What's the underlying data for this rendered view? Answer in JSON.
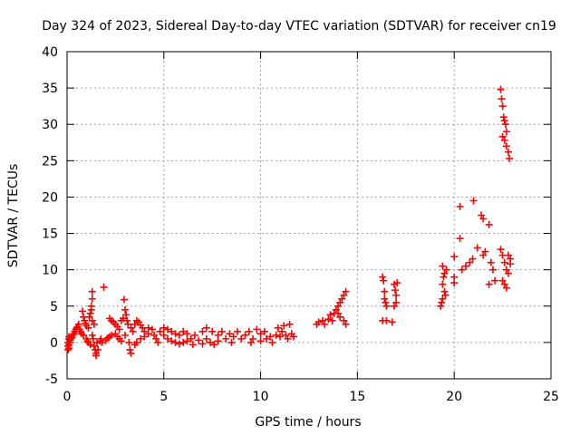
{
  "chart_data": {
    "type": "scatter",
    "title": "Day 324 of 2023, Sidereal Day-to-day VTEC variation (SDTVAR) for receiver cn19",
    "xlabel": "GPS time / hours",
    "ylabel": "SDTVAR / TECUs",
    "xlim": [
      0,
      25
    ],
    "ylim": [
      -5,
      40
    ],
    "xticks": [
      0,
      5,
      10,
      15,
      20,
      25
    ],
    "yticks": [
      -5,
      0,
      5,
      10,
      15,
      20,
      25,
      30,
      35,
      40
    ],
    "grid": true,
    "marker": "plus",
    "color": "#ff0000",
    "series": [
      {
        "name": "cn19",
        "points": [
          [
            0.05,
            -1.0
          ],
          [
            0.05,
            -0.5
          ],
          [
            0.05,
            0.0
          ],
          [
            0.08,
            0.5
          ],
          [
            0.1,
            0.8
          ],
          [
            0.1,
            -0.8
          ],
          [
            0.1,
            -0.3
          ],
          [
            0.15,
            0.3
          ],
          [
            0.2,
            0.5
          ],
          [
            0.25,
            0.7
          ],
          [
            0.3,
            1.0
          ],
          [
            0.35,
            1.2
          ],
          [
            0.4,
            1.5
          ],
          [
            0.45,
            1.8
          ],
          [
            0.5,
            2.0
          ],
          [
            0.55,
            2.2
          ],
          [
            0.6,
            2.5
          ],
          [
            0.65,
            1.8
          ],
          [
            0.7,
            1.5
          ],
          [
            0.75,
            1.2
          ],
          [
            0.8,
            4.3
          ],
          [
            0.85,
            3.5
          ],
          [
            0.85,
            1.0
          ],
          [
            0.9,
            3.0
          ],
          [
            0.95,
            2.6
          ],
          [
            1.0,
            2.3
          ],
          [
            1.0,
            0.5
          ],
          [
            1.05,
            0.2
          ],
          [
            1.1,
            0.0
          ],
          [
            1.1,
            2.0
          ],
          [
            1.15,
            3.5
          ],
          [
            1.2,
            4.0
          ],
          [
            1.2,
            -0.3
          ],
          [
            1.25,
            5.0
          ],
          [
            1.25,
            4.5
          ],
          [
            1.3,
            6.0
          ],
          [
            1.3,
            7.0
          ],
          [
            1.3,
            3.0
          ],
          [
            1.3,
            1.0
          ],
          [
            1.35,
            0.5
          ],
          [
            1.4,
            -0.5
          ],
          [
            1.4,
            2.5
          ],
          [
            1.45,
            -1.0
          ],
          [
            1.5,
            -1.5
          ],
          [
            1.5,
            -1.8
          ],
          [
            1.55,
            0.0
          ],
          [
            1.6,
            -1.0
          ],
          [
            1.7,
            0.2
          ],
          [
            1.75,
            0.5
          ],
          [
            1.8,
            0.0
          ],
          [
            1.9,
            7.6
          ],
          [
            2.0,
            0.3
          ],
          [
            2.1,
            0.6
          ],
          [
            2.2,
            0.8
          ],
          [
            2.2,
            3.3
          ],
          [
            2.3,
            1.0
          ],
          [
            2.3,
            3.0
          ],
          [
            2.4,
            2.8
          ],
          [
            2.5,
            2.5
          ],
          [
            2.5,
            1.2
          ],
          [
            2.6,
            0.8
          ],
          [
            2.6,
            2.2
          ],
          [
            2.7,
            1.8
          ],
          [
            2.7,
            0.5
          ],
          [
            2.8,
            0.2
          ],
          [
            2.8,
            3.0
          ],
          [
            2.9,
            3.3
          ],
          [
            2.95,
            5.9
          ],
          [
            3.0,
            4.5
          ],
          [
            3.0,
            1.0
          ],
          [
            3.05,
            3.8
          ],
          [
            3.1,
            3.0
          ],
          [
            3.15,
            2.5
          ],
          [
            3.2,
            0.0
          ],
          [
            3.25,
            -1.0
          ],
          [
            3.3,
            -1.5
          ],
          [
            3.3,
            2.0
          ],
          [
            3.4,
            1.5
          ],
          [
            3.5,
            2.5
          ],
          [
            3.6,
            3.0
          ],
          [
            3.7,
            2.8
          ],
          [
            3.8,
            2.4
          ],
          [
            3.9,
            2.0
          ],
          [
            3.5,
            -0.3
          ],
          [
            3.6,
            0.0
          ],
          [
            3.8,
            0.5
          ],
          [
            4.0,
            0.8
          ],
          [
            4.0,
            1.5
          ],
          [
            4.2,
            1.2
          ],
          [
            4.2,
            2.0
          ],
          [
            4.4,
            1.8
          ],
          [
            4.5,
            1.0
          ],
          [
            4.6,
            0.5
          ],
          [
            4.7,
            0.0
          ],
          [
            4.8,
            1.5
          ],
          [
            5.0,
            2.0
          ],
          [
            5.0,
            1.0
          ],
          [
            5.2,
            0.5
          ],
          [
            5.2,
            1.8
          ],
          [
            5.4,
            0.2
          ],
          [
            5.4,
            1.5
          ],
          [
            5.6,
            0.0
          ],
          [
            5.6,
            1.2
          ],
          [
            5.8,
            -0.2
          ],
          [
            5.8,
            1.0
          ],
          [
            6.0,
            0.0
          ],
          [
            6.0,
            1.5
          ],
          [
            6.2,
            0.2
          ],
          [
            6.2,
            1.2
          ],
          [
            6.4,
            0.5
          ],
          [
            6.5,
            -0.3
          ],
          [
            6.6,
            1.0
          ],
          [
            6.8,
            0.3
          ],
          [
            7.0,
            -0.2
          ],
          [
            7.0,
            1.5
          ],
          [
            7.2,
            0.5
          ],
          [
            7.2,
            2.0
          ],
          [
            7.4,
            0.0
          ],
          [
            7.5,
            1.5
          ],
          [
            7.6,
            -0.3
          ],
          [
            7.8,
            1.0
          ],
          [
            7.8,
            0.2
          ],
          [
            8.0,
            1.5
          ],
          [
            8.2,
            0.5
          ],
          [
            8.4,
            1.2
          ],
          [
            8.5,
            0.0
          ],
          [
            8.6,
            0.8
          ],
          [
            8.8,
            1.5
          ],
          [
            9.0,
            0.5
          ],
          [
            9.2,
            1.0
          ],
          [
            9.4,
            1.5
          ],
          [
            9.5,
            0.0
          ],
          [
            9.6,
            0.5
          ],
          [
            9.8,
            1.8
          ],
          [
            10.0,
            0.2
          ],
          [
            10.0,
            1.2
          ],
          [
            10.2,
            1.5
          ],
          [
            10.3,
            0.5
          ],
          [
            10.5,
            0.8
          ],
          [
            10.6,
            0.0
          ],
          [
            10.8,
            1.0
          ],
          [
            10.9,
            2.0
          ],
          [
            11.0,
            0.8
          ],
          [
            11.1,
            1.5
          ],
          [
            11.2,
            2.3
          ],
          [
            11.3,
            1.0
          ],
          [
            11.4,
            0.5
          ],
          [
            11.5,
            2.5
          ],
          [
            11.6,
            1.2
          ],
          [
            11.7,
            0.8
          ],
          [
            12.9,
            2.5
          ],
          [
            13.0,
            2.8
          ],
          [
            13.2,
            3.0
          ],
          [
            13.3,
            2.5
          ],
          [
            13.5,
            3.2
          ],
          [
            13.6,
            3.8
          ],
          [
            13.7,
            3.0
          ],
          [
            13.8,
            4.0
          ],
          [
            13.9,
            4.5
          ],
          [
            14.0,
            5.0
          ],
          [
            14.1,
            5.5
          ],
          [
            14.2,
            6.0
          ],
          [
            14.3,
            6.5
          ],
          [
            14.4,
            7.0
          ],
          [
            14.4,
            2.5
          ],
          [
            14.3,
            3.0
          ],
          [
            14.1,
            3.5
          ],
          [
            14.0,
            4.0
          ],
          [
            16.3,
            9.0
          ],
          [
            16.35,
            8.5
          ],
          [
            16.4,
            7.0
          ],
          [
            16.4,
            6.0
          ],
          [
            16.45,
            5.5
          ],
          [
            16.5,
            5.0
          ],
          [
            16.3,
            3.0
          ],
          [
            16.5,
            3.0
          ],
          [
            16.8,
            2.8
          ],
          [
            16.9,
            8.0
          ],
          [
            16.95,
            7.2
          ],
          [
            17.0,
            6.5
          ],
          [
            17.0,
            5.5
          ],
          [
            16.9,
            5.0
          ],
          [
            17.05,
            8.2
          ],
          [
            19.3,
            5.0
          ],
          [
            19.35,
            5.5
          ],
          [
            19.4,
            6.0
          ],
          [
            19.4,
            8.0
          ],
          [
            19.45,
            9.0
          ],
          [
            19.5,
            9.5
          ],
          [
            19.5,
            7.0
          ],
          [
            19.55,
            6.5
          ],
          [
            19.6,
            10.0
          ],
          [
            19.4,
            10.5
          ],
          [
            20.0,
            8.2
          ],
          [
            20.0,
            11.8
          ],
          [
            20.0,
            9.0
          ],
          [
            20.3,
            14.3
          ],
          [
            20.3,
            18.7
          ],
          [
            20.4,
            10.0
          ],
          [
            20.6,
            10.5
          ],
          [
            20.8,
            11.0
          ],
          [
            21.0,
            19.5
          ],
          [
            20.95,
            11.5
          ],
          [
            21.2,
            13.0
          ],
          [
            21.4,
            17.5
          ],
          [
            21.5,
            17.0
          ],
          [
            21.5,
            12.0
          ],
          [
            21.6,
            12.5
          ],
          [
            21.8,
            16.2
          ],
          [
            21.8,
            8.0
          ],
          [
            21.9,
            11.0
          ],
          [
            22.0,
            10.0
          ],
          [
            22.1,
            8.5
          ],
          [
            22.4,
            34.8
          ],
          [
            22.45,
            33.5
          ],
          [
            22.5,
            32.5
          ],
          [
            22.55,
            31.0
          ],
          [
            22.6,
            30.5
          ],
          [
            22.65,
            30.0
          ],
          [
            22.7,
            29.0
          ],
          [
            22.5,
            28.3
          ],
          [
            22.6,
            27.8
          ],
          [
            22.7,
            27.0
          ],
          [
            22.8,
            26.2
          ],
          [
            22.85,
            25.3
          ],
          [
            22.4,
            12.8
          ],
          [
            22.5,
            12.0
          ],
          [
            22.6,
            11.0
          ],
          [
            22.7,
            10.0
          ],
          [
            22.8,
            9.5
          ],
          [
            22.9,
            11.5
          ],
          [
            22.9,
            10.8
          ],
          [
            22.5,
            8.5
          ],
          [
            22.6,
            8.0
          ],
          [
            22.7,
            7.5
          ],
          [
            22.8,
            12.0
          ]
        ]
      }
    ]
  }
}
